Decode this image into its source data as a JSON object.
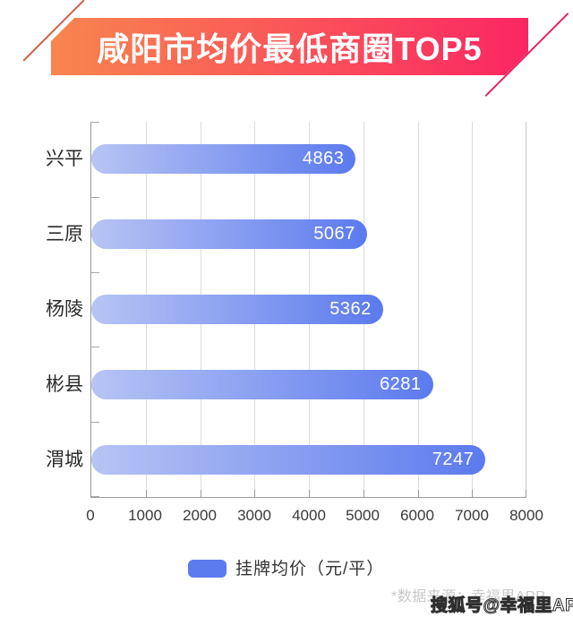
{
  "title": "咸阳市均价最低商圈TOP5",
  "colors": {
    "banner_gradient_start": "#F8854E",
    "banner_gradient_end": "#FB2663",
    "decor_line_left": "#D0634A",
    "decor_line_right": "#E72863",
    "bar_gradient_start": "#B7C4F4",
    "bar_gradient_end": "#5B7AEE",
    "legend_swatch": "#5B7BEE",
    "grid": "#DCDCDC",
    "axis": "#9A9A9A"
  },
  "chart_data": {
    "type": "bar",
    "orientation": "horizontal",
    "title": "咸阳市均价最低商圈TOP5",
    "categories": [
      "兴平",
      "三原",
      "杨陵",
      "彬县",
      "渭城"
    ],
    "values": [
      4863,
      5067,
      5362,
      6281,
      7247
    ],
    "series_name": "挂牌均价（元/平）",
    "xlim": [
      0,
      8000
    ],
    "x_ticks": [
      "0",
      "1000",
      "2000",
      "3000",
      "4000",
      "5000",
      "6000",
      "7000",
      "8000"
    ],
    "grid": true,
    "legend_position": "bottom",
    "value_labels": "inside-end"
  },
  "legend": {
    "label": "挂牌均价（元/平）"
  },
  "footnote": "*数据来源：幸福里APP",
  "watermark": "搜狐号@幸福里APP"
}
